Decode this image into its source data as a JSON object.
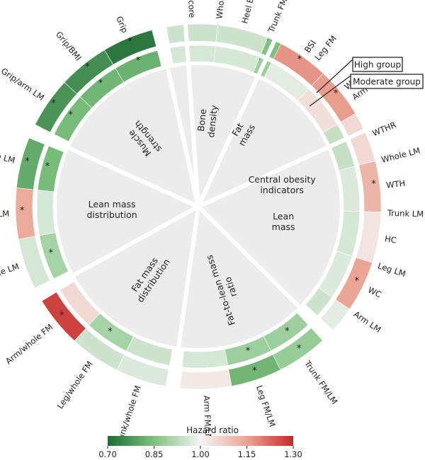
{
  "chart_data": {
    "type": "heatmap",
    "colorscale": {
      "title": "Hazard ratio",
      "min": 0.7,
      "max": 1.3,
      "ticks": [
        "0.70",
        "0.85",
        "1.00",
        "1.15",
        "1.30"
      ],
      "colors": [
        "#1e6b35",
        "#7ec27f",
        "#f4f4f4",
        "#eaa594",
        "#c62828"
      ]
    },
    "rings": {
      "outer": "High group",
      "inner": "Moderate group"
    },
    "sectors": [
      {
        "name": "Fat mass",
        "items": [
          {
            "label": "Whole FM",
            "high": 0.87,
            "high_sig": true,
            "moderate": 0.91,
            "moderate_sig": false
          },
          {
            "label": "Trunk FM",
            "high": 0.85,
            "high_sig": true,
            "moderate": 0.89,
            "moderate_sig": true
          },
          {
            "label": "Leg FM",
            "high": 0.8,
            "high_sig": true,
            "moderate": 0.88,
            "moderate_sig": true
          },
          {
            "label": "Arm FM",
            "high": 1.04,
            "high_sig": false,
            "moderate": 0.95,
            "moderate_sig": false
          }
        ]
      },
      {
        "name": "Lean mass",
        "items": [
          {
            "label": "Whole LM",
            "high": 1.08,
            "high_sig": false,
            "moderate": 0.97,
            "moderate_sig": false
          },
          {
            "label": "Trunk LM",
            "high": 1.04,
            "high_sig": false,
            "moderate": 0.98,
            "moderate_sig": false
          },
          {
            "label": "Leg LM",
            "high": 1.27,
            "high_sig": true,
            "moderate": 1.04,
            "moderate_sig": false
          },
          {
            "label": "Arm LM",
            "high": 0.98,
            "high_sig": false,
            "moderate": 0.95,
            "moderate_sig": false
          }
        ]
      },
      {
        "name": "Fat-to-lean mass ratio",
        "items": [
          {
            "label": "Trunk FM/LM",
            "high": 0.88,
            "high_sig": true,
            "moderate": 0.89,
            "moderate_sig": true
          },
          {
            "label": "Leg FM/LM",
            "high": 0.83,
            "high_sig": true,
            "moderate": 0.89,
            "moderate_sig": true
          },
          {
            "label": "Arm FM/LM",
            "high": 1.02,
            "high_sig": false,
            "moderate": 0.96,
            "moderate_sig": false
          }
        ]
      },
      {
        "name": "Fat mass distribution",
        "items": [
          {
            "label": "Trunk/whole FM",
            "high": 0.97,
            "high_sig": false,
            "moderate": 0.95,
            "moderate_sig": false
          },
          {
            "label": "Leg/whole FM",
            "high": 0.95,
            "high_sig": false,
            "moderate": 0.9,
            "moderate_sig": true
          },
          {
            "label": "Arm/whole FM",
            "high": 1.27,
            "high_sig": true,
            "moderate": 1.05,
            "moderate_sig": false
          }
        ]
      },
      {
        "name": "Lean mass distribution",
        "items": [
          {
            "label": "Trunk/whole LM",
            "high": 0.96,
            "high_sig": false,
            "moderate": 0.9,
            "moderate_sig": true
          },
          {
            "label": "Leg/whole LM",
            "high": 1.14,
            "high_sig": true,
            "moderate": 0.96,
            "moderate_sig": false
          },
          {
            "label": "Arm/whole LM",
            "high": 0.81,
            "high_sig": true,
            "moderate": 0.84,
            "moderate_sig": true
          }
        ]
      },
      {
        "name": "Muscle strength",
        "items": [
          {
            "label": "Grip/arm LM",
            "high": 0.77,
            "high_sig": true,
            "moderate": 0.84,
            "moderate_sig": true
          },
          {
            "label": "Grip/BMI",
            "high": 0.76,
            "high_sig": true,
            "moderate": 0.83,
            "moderate_sig": true
          },
          {
            "label": "Grip",
            "high": 0.72,
            "high_sig": true,
            "moderate": 0.82,
            "moderate_sig": true
          }
        ]
      },
      {
        "name": "Bone density",
        "items": [
          {
            "label": "Heel BMD t-score",
            "high": 0.95,
            "high_sig": false,
            "moderate": 0.96,
            "moderate_sig": false
          },
          {
            "label": "Heel BMD",
            "high": 0.95,
            "high_sig": false,
            "moderate": 0.96,
            "moderate_sig": false
          }
        ]
      },
      {
        "name": "Central obesity indicators",
        "items": [
          {
            "label": "BSI",
            "high": 1.17,
            "high_sig": true,
            "moderate": 0.98,
            "moderate_sig": false
          },
          {
            "label": "WWI",
            "high": 1.16,
            "high_sig": true,
            "moderate": 1.04,
            "moderate_sig": false
          },
          {
            "label": "WTHR",
            "high": 1.05,
            "high_sig": false,
            "moderate": 0.94,
            "moderate_sig": false
          },
          {
            "label": "WTH",
            "high": 1.12,
            "high_sig": true,
            "moderate": 0.97,
            "moderate_sig": false
          },
          {
            "label": "HC",
            "high": 1.03,
            "high_sig": false,
            "moderate": 0.96,
            "moderate_sig": false
          },
          {
            "label": "WC",
            "high": 1.15,
            "high_sig": true,
            "moderate": 0.97,
            "moderate_sig": false
          }
        ]
      }
    ]
  }
}
